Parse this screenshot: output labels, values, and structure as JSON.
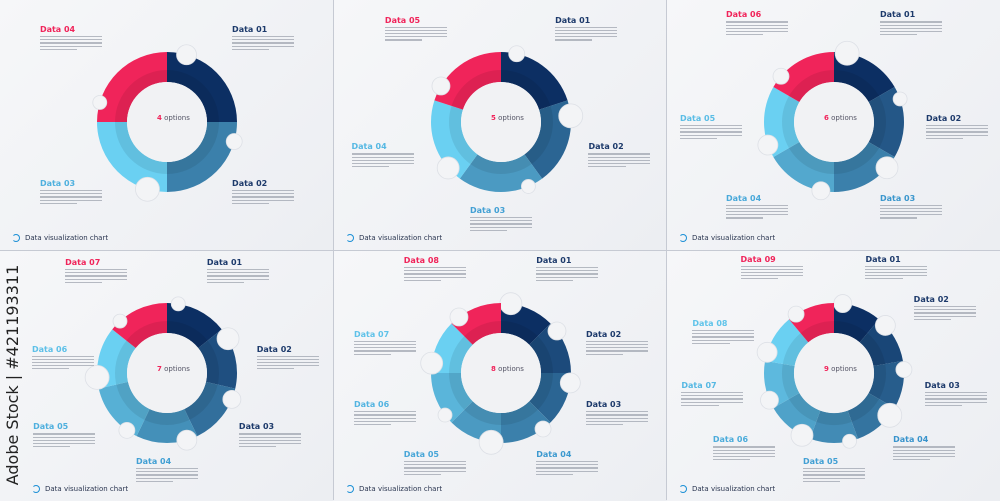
{
  "colors": {
    "dark": "#0c2f63",
    "light": "#6ad0f2",
    "accent": "#f0245a",
    "text_dark": "#1d3a6b"
  },
  "panels": [
    {
      "options_count": "4",
      "options_label": "options",
      "items": [
        "Data 01",
        "Data 02",
        "Data 03",
        "Data 04"
      ],
      "footer": "Data visualization chart"
    },
    {
      "options_count": "5",
      "options_label": "options",
      "items": [
        "Data 01",
        "Data 02",
        "Data 03",
        "Data 04",
        "Data 05"
      ],
      "footer": "Data visualization chart"
    },
    {
      "options_count": "6",
      "options_label": "options",
      "items": [
        "Data 01",
        "Data 02",
        "Data 03",
        "Data 04",
        "Data 05",
        "Data 06"
      ],
      "footer": "Data visualization chart"
    },
    {
      "options_count": "7",
      "options_label": "options",
      "items": [
        "Data 01",
        "Data 02",
        "Data 03",
        "Data 04",
        "Data 05",
        "Data 06",
        "Data 07"
      ],
      "footer": "Data visualization chart"
    },
    {
      "options_count": "8",
      "options_label": "options",
      "items": [
        "Data 01",
        "Data 02",
        "Data 03",
        "Data 04",
        "Data 05",
        "Data 06",
        "Data 07",
        "Data 08"
      ],
      "footer": "Data visualization chart"
    },
    {
      "options_count": "9",
      "options_label": "options",
      "items": [
        "Data 01",
        "Data 02",
        "Data 03",
        "Data 04",
        "Data 05",
        "Data 06",
        "Data 07",
        "Data 08",
        "Data 09"
      ],
      "footer": "Data visualization chart"
    }
  ],
  "watermark": "Adobe Stock | #421193311"
}
